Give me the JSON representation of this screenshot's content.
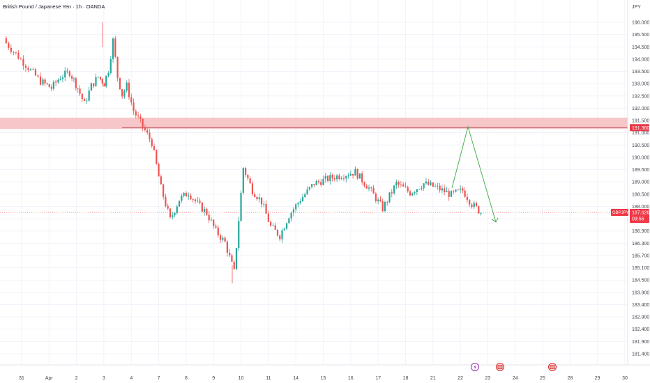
{
  "header": {
    "title": "British Pound / Japanese Yen · 1h · OANDA",
    "currency": "JPY"
  },
  "colors": {
    "up": "#26a69a",
    "down": "#ef5350",
    "zone_fill": "#f7c6c9",
    "resistance_line": "#e53945",
    "projection": "#4caf50",
    "last_price_bg": "#f23645",
    "grid": "#f0f3fa"
  },
  "badges": {
    "symbol": "GBPJPY",
    "last_price": "187.626",
    "countdown": "09:56",
    "resistance": "191.360"
  },
  "chart_data": {
    "type": "candlestick",
    "title": "British Pound / Japanese Yen · 1h · OANDA",
    "xlabel": "",
    "ylabel": "JPY",
    "ylim": [
      181.0,
      196.7
    ],
    "y_ticks": [
      "196.000",
      "195.500",
      "194.500",
      "194.000",
      "193.500",
      "193.000",
      "192.500",
      "192.000",
      "191.500",
      "191.000",
      "190.500",
      "190.000",
      "189.500",
      "189.000",
      "188.500",
      "188.000",
      "187.500",
      "186.900",
      "186.300",
      "185.700",
      "185.100",
      "184.500",
      "183.900",
      "183.400",
      "182.900",
      "182.400",
      "181.900",
      "181.400"
    ],
    "x_ticks": [
      "31",
      "Apr",
      "2",
      "3",
      "4",
      "7",
      "8",
      "9",
      "10",
      "11",
      "14",
      "15",
      "16",
      "17",
      "18",
      "21",
      "22",
      "23",
      "24",
      "25",
      "28",
      "29",
      "30"
    ],
    "grid": true,
    "resistance_zone": [
      191.3,
      191.8
    ],
    "resistance_level": 191.36,
    "last_price": 187.626,
    "projection_path": [
      {
        "x": "22",
        "y": 188.7
      },
      {
        "x": "22",
        "y": 191.4
      },
      {
        "x": "23",
        "y": 187.2
      }
    ],
    "series": [
      {
        "values": [
          {
            "x": "31",
            "close": 195.2
          },
          {
            "x": "31",
            "close": 194.6
          },
          {
            "x": "31",
            "close": 194.0
          },
          {
            "x": "31",
            "close": 193.4
          },
          {
            "x": "Apr",
            "close": 193.1
          },
          {
            "x": "Apr",
            "close": 193.6
          },
          {
            "x": "Apr",
            "close": 193.8
          },
          {
            "x": "2",
            "close": 193.1
          },
          {
            "x": "2",
            "close": 192.4
          },
          {
            "x": "2",
            "close": 193.2
          },
          {
            "x": "2",
            "close": 193.6
          },
          {
            "x": "3",
            "close": 193.3
          },
          {
            "x": "3",
            "close": 193.9
          },
          {
            "x": "3",
            "close": 195.2
          },
          {
            "x": "3",
            "close": 193.6
          },
          {
            "x": "3",
            "close": 192.8
          },
          {
            "x": "3",
            "close": 193.2
          },
          {
            "x": "4",
            "close": 192.1
          },
          {
            "x": "4",
            "close": 191.4
          },
          {
            "x": "4",
            "close": 190.7
          },
          {
            "x": "7",
            "close": 188.7
          },
          {
            "x": "7",
            "close": 187.3
          },
          {
            "x": "7",
            "close": 188.2
          },
          {
            "x": "8",
            "close": 188.5
          },
          {
            "x": "8",
            "close": 188.0
          },
          {
            "x": "8",
            "close": 187.6
          },
          {
            "x": "9",
            "close": 186.8
          },
          {
            "x": "9",
            "close": 186.3
          },
          {
            "x": "9",
            "close": 185.0
          },
          {
            "x": "10",
            "close": 189.6
          },
          {
            "x": "10",
            "close": 188.6
          },
          {
            "x": "10",
            "close": 188.1
          },
          {
            "x": "11",
            "close": 187.0
          },
          {
            "x": "11",
            "close": 186.6
          },
          {
            "x": "11",
            "close": 187.5
          },
          {
            "x": "14",
            "close": 188.2
          },
          {
            "x": "14",
            "close": 188.9
          },
          {
            "x": "15",
            "close": 189.2
          },
          {
            "x": "16",
            "close": 189.4
          },
          {
            "x": "16",
            "close": 188.7
          },
          {
            "x": "17",
            "close": 187.8
          },
          {
            "x": "17",
            "close": 188.9
          },
          {
            "x": "18",
            "close": 188.5
          },
          {
            "x": "18",
            "close": 188.9
          },
          {
            "x": "21",
            "close": 188.7
          },
          {
            "x": "21",
            "close": 188.4
          },
          {
            "x": "22",
            "close": 188.6
          },
          {
            "x": "22",
            "close": 188.0
          },
          {
            "x": "22",
            "close": 187.626
          }
        ]
      }
    ]
  }
}
